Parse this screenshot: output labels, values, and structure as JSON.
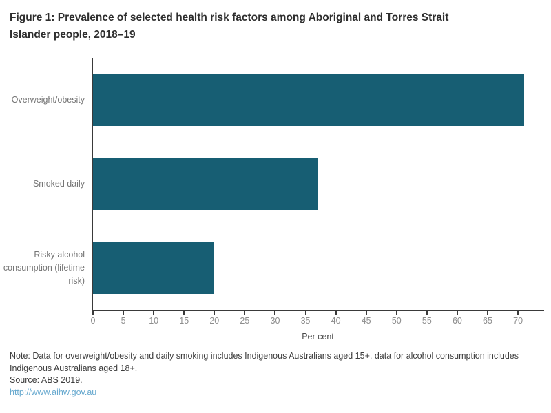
{
  "title": "Figure 1: Prevalence of selected health risk factors among Aboriginal and Torres Strait Islander people, 2018–19",
  "chart_data": {
    "type": "bar",
    "orientation": "horizontal",
    "title": "Figure 1: Prevalence of selected health risk factors among Aboriginal and Torres Strait Islander people, 2018–19",
    "categories": [
      "Overweight/obesity",
      "Smoked daily",
      "Risky alcohol consumption (lifetime risk)"
    ],
    "values": [
      71,
      37,
      20
    ],
    "xlabel": "Per cent",
    "ylabel": "",
    "xlim": [
      0,
      74.3
    ],
    "ticks": [
      0,
      5,
      10,
      15,
      20,
      25,
      30,
      35,
      40,
      45,
      50,
      55,
      60,
      65,
      70
    ],
    "grid": false,
    "legend": "none",
    "bar_color": "#175e73",
    "axis_color": "#3a3a3a",
    "tick_label_color": "#8d8d8d",
    "bar_thickness_px": 75
  },
  "notes": {
    "note": "Note: Data for overweight/obesity and daily smoking includes Indigenous Australians aged 15+, data for alcohol consumption includes Indigenous Australians aged 18+.",
    "source": "Source: ABS 2019.",
    "link": "http://www.aihw.gov.au"
  }
}
